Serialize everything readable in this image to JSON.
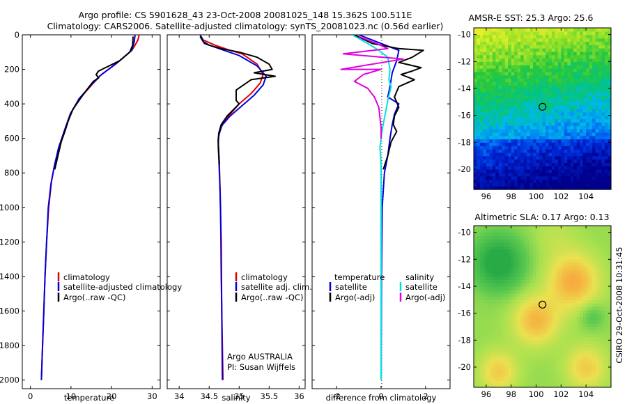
{
  "header": {
    "line1": "Argo profile: CS 5901628_43 23-Oct-2008 20081025_148 15.362S 100.511E",
    "line2": "Climatology: CARS2006. Satellite-adjusted climatology: synTS_20081023.nc (0.56d earlier)"
  },
  "chart_data": [
    {
      "type": "line",
      "xlabel": "temperature",
      "xlim": [
        -2,
        32
      ],
      "ylim": [
        2050,
        0
      ],
      "xticks": [
        0,
        10,
        20,
        30
      ],
      "yticks": [
        0,
        200,
        400,
        600,
        800,
        1000,
        1200,
        1400,
        1600,
        1800,
        2000
      ],
      "series": [
        {
          "name": "climatology",
          "color": "#e00000",
          "points": [
            [
              26.8,
              0
            ],
            [
              26.5,
              30
            ],
            [
              25.8,
              60
            ],
            [
              25.0,
              90
            ],
            [
              21.5,
              160
            ],
            [
              17.5,
              230
            ],
            [
              15.5,
              280
            ],
            [
              12.5,
              360
            ],
            [
              10.0,
              450
            ],
            [
              8.5,
              550
            ],
            [
              7.0,
              650
            ],
            [
              6.0,
              750
            ],
            [
              5.2,
              850
            ],
            [
              4.5,
              1000
            ],
            [
              4.0,
              1200
            ],
            [
              3.6,
              1400
            ],
            [
              3.3,
              1600
            ],
            [
              3.0,
              1800
            ],
            [
              2.7,
              2000
            ]
          ]
        },
        {
          "name": "satellite-adjusted climatology",
          "color": "#0000e0",
          "points": [
            [
              25.8,
              0
            ],
            [
              25.6,
              40
            ],
            [
              25.0,
              90
            ],
            [
              21.0,
              170
            ],
            [
              17.0,
              240
            ],
            [
              15.0,
              290
            ],
            [
              12.0,
              370
            ],
            [
              9.8,
              460
            ],
            [
              8.3,
              560
            ],
            [
              6.9,
              660
            ],
            [
              5.9,
              760
            ],
            [
              5.1,
              860
            ],
            [
              4.4,
              1000
            ],
            [
              4.0,
              1200
            ],
            [
              3.6,
              1400
            ],
            [
              3.3,
              1600
            ],
            [
              3.0,
              1800
            ],
            [
              2.7,
              2000
            ]
          ]
        },
        {
          "name": "Argo(..raw -QC)",
          "color": "#000000",
          "points": [
            [
              25.3,
              10
            ],
            [
              25.2,
              60
            ],
            [
              24.5,
              100
            ],
            [
              22.0,
              150
            ],
            [
              18.5,
              190
            ],
            [
              16.8,
              210
            ],
            [
              16.2,
              230
            ],
            [
              16.8,
              250
            ],
            [
              15.5,
              270
            ],
            [
              13.5,
              330
            ],
            [
              12.0,
              380
            ],
            [
              10.5,
              430
            ],
            [
              9.3,
              500
            ],
            [
              8.5,
              560
            ],
            [
              7.6,
              620
            ],
            [
              6.8,
              700
            ],
            [
              6.0,
              780
            ]
          ]
        }
      ],
      "legend": {
        "items": [
          "climatology",
          "satellite-adjusted climatology",
          "Argo(..raw -QC)"
        ],
        "location": "lower-right"
      }
    },
    {
      "type": "line",
      "xlabel": "salinity",
      "xlim": [
        33.8,
        36.1
      ],
      "ylim": [
        2050,
        0
      ],
      "xticks": [
        34,
        34.5,
        35,
        35.5,
        36
      ],
      "series": [
        {
          "name": "climatology",
          "color": "#e00000",
          "points": [
            [
              34.35,
              0
            ],
            [
              34.4,
              30
            ],
            [
              34.6,
              60
            ],
            [
              34.85,
              90
            ],
            [
              35.05,
              110
            ],
            [
              35.3,
              170
            ],
            [
              35.4,
              230
            ],
            [
              35.35,
              280
            ],
            [
              35.2,
              340
            ],
            [
              35.0,
              400
            ],
            [
              34.85,
              460
            ],
            [
              34.72,
              520
            ],
            [
              34.66,
              580
            ],
            [
              34.65,
              650
            ],
            [
              34.67,
              750
            ],
            [
              34.69,
              1000
            ],
            [
              34.7,
              1400
            ],
            [
              34.72,
              1800
            ],
            [
              34.73,
              2000
            ]
          ]
        },
        {
          "name": "satellite adj. clim.",
          "color": "#0000e0",
          "points": [
            [
              34.35,
              0
            ],
            [
              34.42,
              50
            ],
            [
              34.75,
              90
            ],
            [
              35.0,
              120
            ],
            [
              35.3,
              180
            ],
            [
              35.45,
              240
            ],
            [
              35.4,
              290
            ],
            [
              35.25,
              350
            ],
            [
              35.05,
              410
            ],
            [
              34.85,
              470
            ],
            [
              34.7,
              530
            ],
            [
              34.65,
              600
            ],
            [
              34.66,
              700
            ],
            [
              34.68,
              900
            ],
            [
              34.7,
              1200
            ],
            [
              34.71,
              1600
            ],
            [
              34.72,
              2000
            ]
          ]
        },
        {
          "name": "Argo(..raw -QC)",
          "color": "#000000",
          "points": [
            [
              34.35,
              10
            ],
            [
              34.4,
              40
            ],
            [
              34.5,
              60
            ],
            [
              34.7,
              80
            ],
            [
              35.0,
              100
            ],
            [
              35.3,
              130
            ],
            [
              35.5,
              170
            ],
            [
              35.55,
              200
            ],
            [
              35.25,
              220
            ],
            [
              35.6,
              240
            ],
            [
              35.2,
              260
            ],
            [
              34.95,
              320
            ],
            [
              34.95,
              380
            ],
            [
              35.0,
              400
            ],
            [
              34.8,
              470
            ],
            [
              34.7,
              520
            ],
            [
              34.66,
              570
            ],
            [
              34.65,
              620
            ],
            [
              34.66,
              680
            ],
            [
              34.67,
              750
            ]
          ]
        }
      ],
      "legend": {
        "items": [
          "climatology",
          "satellite adj. clim.",
          "Argo(..raw -QC)"
        ],
        "location": "lower-right"
      },
      "annotations": [
        "Argo AUSTRALIA",
        "PI: Susan Wijffels"
      ]
    },
    {
      "type": "line",
      "xlabel": "difference from climatology",
      "xlim": [
        -3.1,
        3.1
      ],
      "ylim": [
        2050,
        0
      ],
      "xticks": [
        -2,
        0,
        2
      ],
      "series": [
        {
          "name": "temperature satellite",
          "color": "#0000e0",
          "points": [
            [
              -1.0,
              0
            ],
            [
              0.0,
              50
            ],
            [
              0.8,
              90
            ],
            [
              0.7,
              150
            ],
            [
              0.5,
              220
            ],
            [
              0.4,
              300
            ],
            [
              0.3,
              360
            ],
            [
              0.8,
              400
            ],
            [
              0.6,
              460
            ],
            [
              0.5,
              520
            ],
            [
              0.4,
              600
            ],
            [
              0.3,
              700
            ],
            [
              0.15,
              800
            ],
            [
              0.05,
              1000
            ],
            [
              0.02,
              1400
            ],
            [
              0.0,
              2000
            ]
          ]
        },
        {
          "name": "temperature Argo(-adj)",
          "color": "#000000",
          "points": [
            [
              -1.2,
              0
            ],
            [
              -0.4,
              50
            ],
            [
              0.8,
              80
            ],
            [
              1.9,
              90
            ],
            [
              1.4,
              130
            ],
            [
              0.8,
              160
            ],
            [
              1.8,
              190
            ],
            [
              1.4,
              210
            ],
            [
              0.9,
              230
            ],
            [
              1.5,
              260
            ],
            [
              0.8,
              300
            ],
            [
              0.6,
              360
            ],
            [
              0.8,
              420
            ],
            [
              0.6,
              470
            ],
            [
              0.55,
              520
            ],
            [
              0.7,
              560
            ],
            [
              0.45,
              620
            ],
            [
              0.3,
              700
            ],
            [
              0.1,
              780
            ]
          ]
        },
        {
          "name": "salinity satellite",
          "color": "#00e0e0",
          "points": [
            [
              -1.3,
              0
            ],
            [
              -0.6,
              50
            ],
            [
              -0.1,
              90
            ],
            [
              0.3,
              130
            ],
            [
              0.4,
              200
            ],
            [
              0.35,
              260
            ],
            [
              0.45,
              300
            ],
            [
              0.3,
              380
            ],
            [
              0.2,
              450
            ],
            [
              0.05,
              550
            ],
            [
              -0.05,
              650
            ],
            [
              0.0,
              750
            ],
            [
              0.0,
              1000
            ],
            [
              0.0,
              2000
            ]
          ]
        },
        {
          "name": "salinity Argo(-adj)",
          "color": "#e000e0",
          "points": [
            [
              -1.0,
              10
            ],
            [
              -0.2,
              50
            ],
            [
              0.3,
              80
            ],
            [
              -1.7,
              110
            ],
            [
              1.0,
              140
            ],
            [
              -1.8,
              200
            ],
            [
              0.0,
              200
            ],
            [
              -0.8,
              230
            ],
            [
              -1.2,
              270
            ],
            [
              -0.6,
              310
            ],
            [
              -0.3,
              360
            ],
            [
              -0.1,
              420
            ],
            [
              -0.05,
              480
            ],
            [
              0.0,
              540
            ],
            [
              0.0,
              600
            ]
          ]
        }
      ],
      "legend": {
        "groups": [
          {
            "title": "temperature",
            "items": [
              "satellite",
              "Argo(-adj)"
            ]
          },
          {
            "title": "salinity",
            "items": [
              "satellite",
              "Argo(-adj)"
            ]
          }
        ],
        "location": "lower-right"
      }
    },
    {
      "type": "heatmap",
      "title": "AMSR-E SST: 25.3 Argo: 25.6",
      "xlim": [
        95,
        106
      ],
      "ylim": [
        -21.5,
        -9.5
      ],
      "xticks": [
        96,
        98,
        100,
        102,
        104
      ],
      "yticks": [
        -10,
        -12,
        -14,
        -16,
        -18,
        -20
      ],
      "marker": {
        "lon": 100.511,
        "lat": -15.362
      }
    },
    {
      "type": "heatmap",
      "title": "Altimetric SLA: 0.17 Argo: 0.13",
      "xlim": [
        95,
        106
      ],
      "ylim": [
        -21.5,
        -9.5
      ],
      "xticks": [
        96,
        98,
        100,
        102,
        104
      ],
      "yticks": [
        -10,
        -12,
        -14,
        -16,
        -18,
        -20
      ],
      "marker": {
        "lon": 100.511,
        "lat": -15.362
      }
    }
  ],
  "side_label": "CSIRO 29-Oct-2008 10:31:45"
}
